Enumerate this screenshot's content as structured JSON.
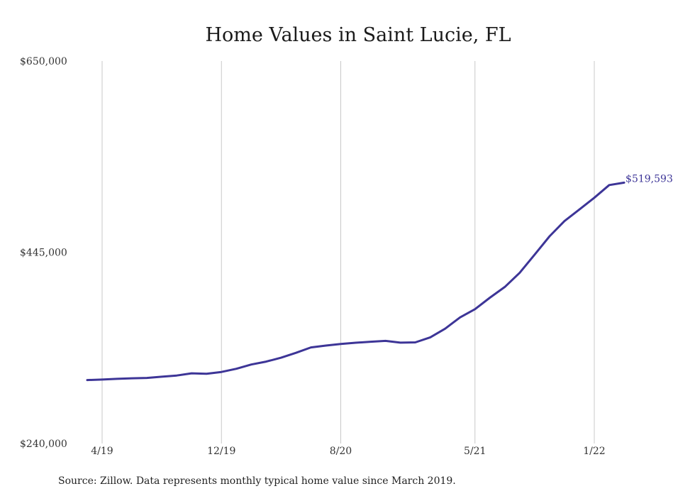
{
  "chart_data": {
    "type": "line",
    "title": "Home Values in Saint Lucie, FL",
    "xlabel": "",
    "ylabel": "",
    "ylim": [
      240000,
      650000
    ],
    "yticks": [
      "$650,000",
      "$445,000",
      "$240,000"
    ],
    "ytick_values": [
      650000,
      445000,
      240000
    ],
    "xticks": [
      "4/19",
      "12/19",
      "8/20",
      "5/21",
      "1/22"
    ],
    "xtick_dates": [
      "2019-04",
      "2019-12",
      "2020-08",
      "2021-05",
      "2022-01"
    ],
    "grid": "vertical",
    "series": [
      {
        "color": "#3d3597",
        "end_label": "$519,593",
        "x": [
          "2019-03",
          "2019-04",
          "2019-05",
          "2019-06",
          "2019-07",
          "2019-08",
          "2019-09",
          "2019-10",
          "2019-11",
          "2019-12",
          "2020-01",
          "2020-02",
          "2020-03",
          "2020-04",
          "2020-05",
          "2020-06",
          "2020-07",
          "2020-08",
          "2020-09",
          "2020-10",
          "2020-11",
          "2020-12",
          "2021-01",
          "2021-02",
          "2021-03",
          "2021-04",
          "2021-05",
          "2021-06",
          "2021-07",
          "2021-08",
          "2021-09",
          "2021-10",
          "2021-11",
          "2021-12",
          "2022-01",
          "2022-02",
          "2022-03"
        ],
        "values": [
          308000,
          308500,
          309300,
          309900,
          310300,
          311600,
          312900,
          315200,
          314700,
          316700,
          320100,
          324700,
          327800,
          332000,
          337200,
          343000,
          345000,
          346700,
          348000,
          349100,
          350000,
          348100,
          348400,
          353800,
          363100,
          375200,
          384000,
          396300,
          407800,
          423000,
          442500,
          462100,
          478400,
          490900,
          503400,
          517000,
          519593
        ]
      }
    ]
  },
  "source_text": "Source: Zillow. Data represents monthly typical home value since March 2019."
}
